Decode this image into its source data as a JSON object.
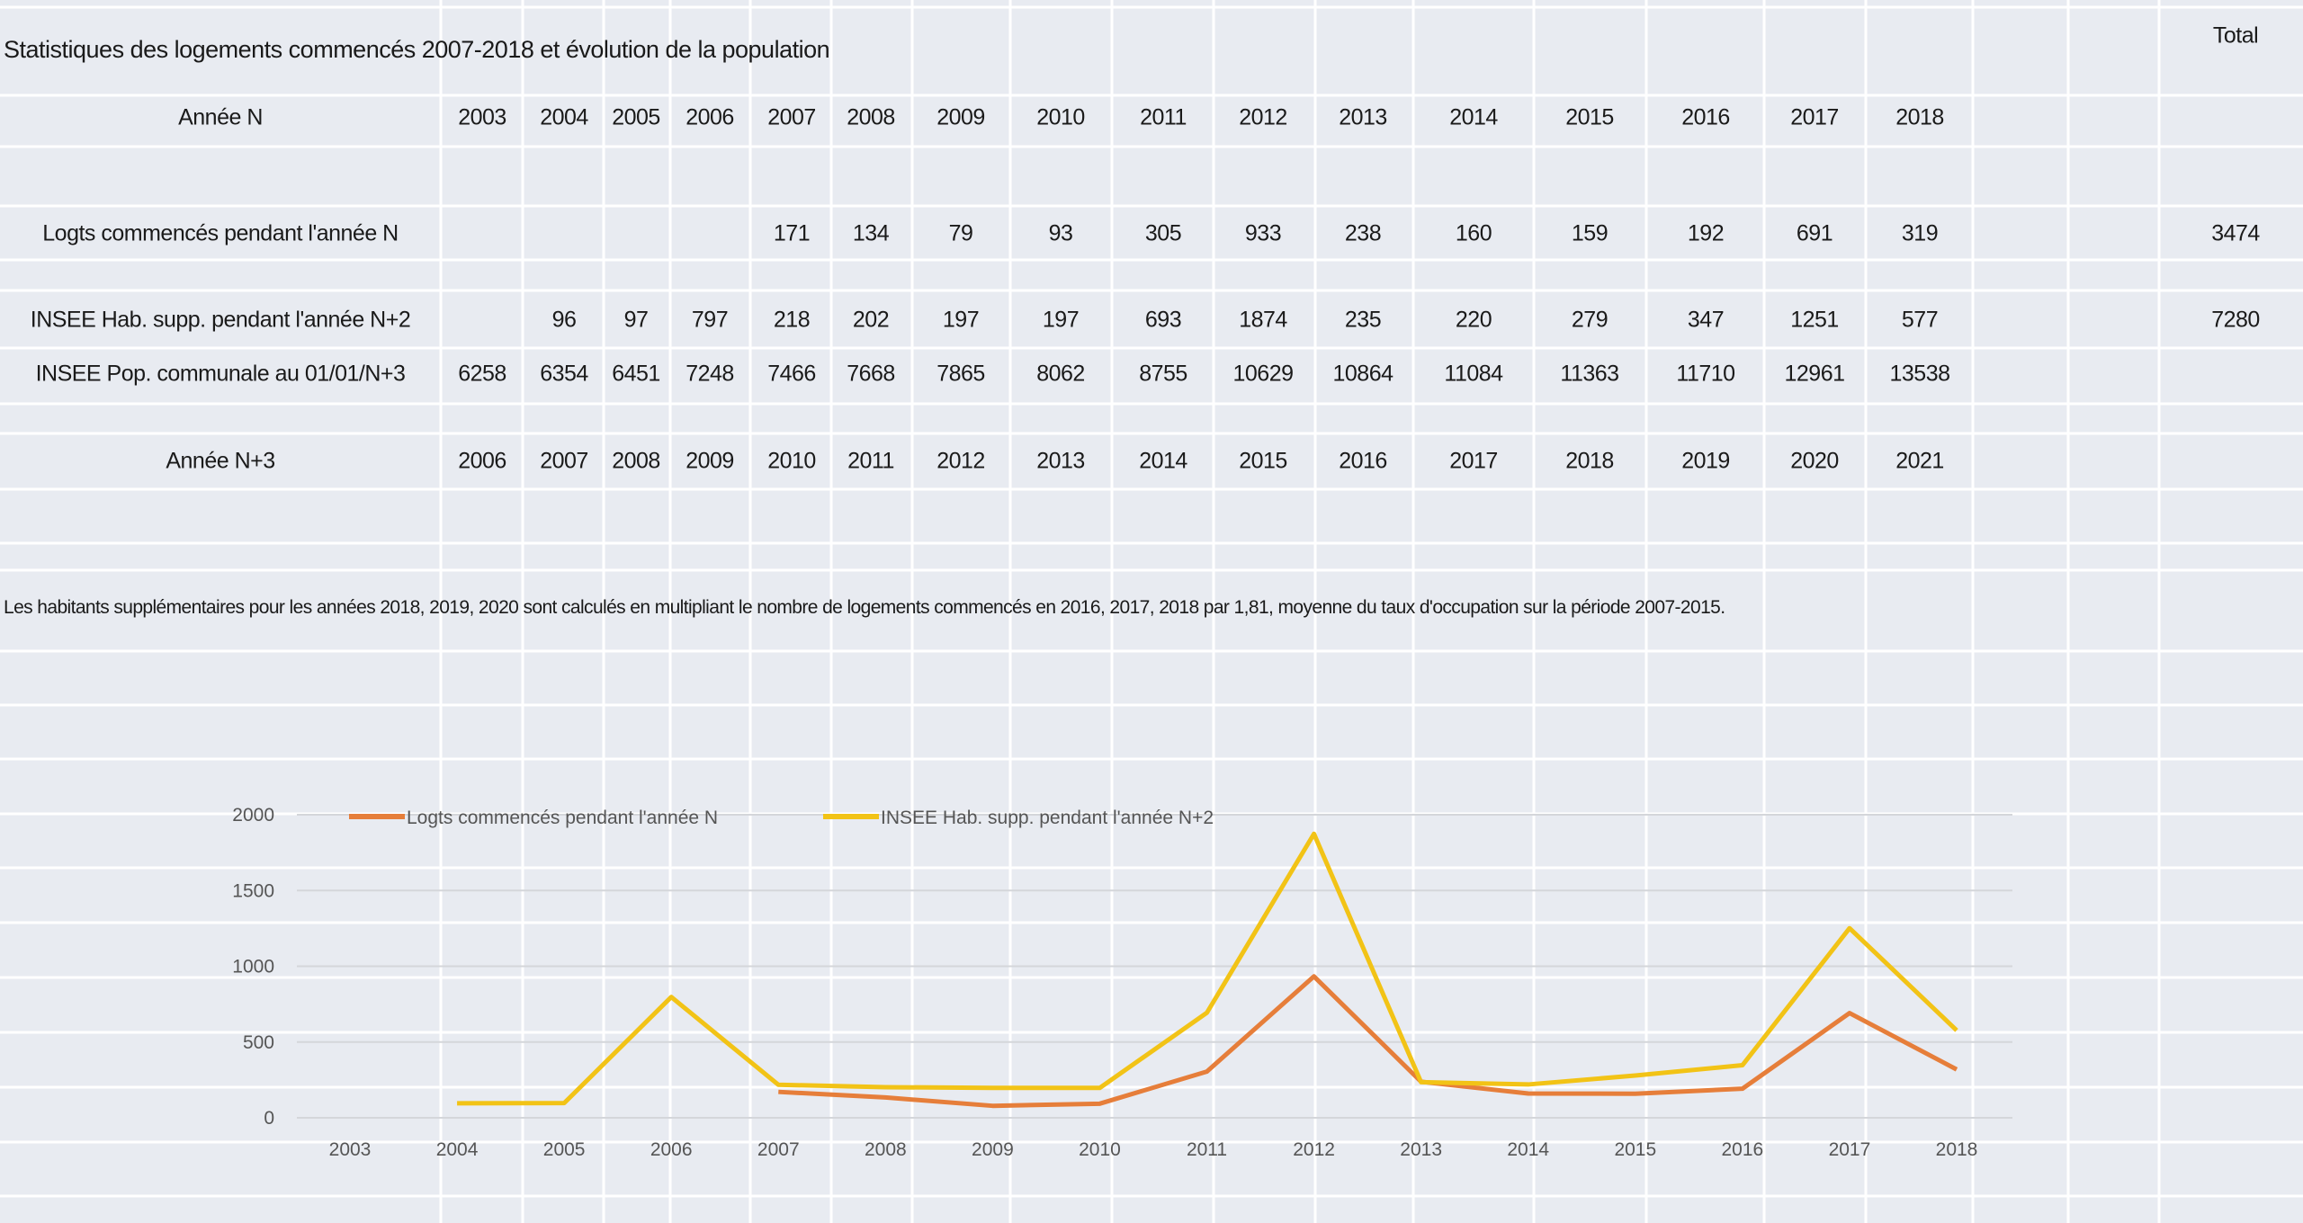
{
  "title": "Statistiques des logements commencés 2007-2018 et évolution de la population",
  "total_header": "Total",
  "table": {
    "rows": [
      {
        "label": "Année N",
        "values": [
          "2003",
          "2004",
          "2005",
          "2006",
          "2007",
          "2008",
          "2009",
          "2010",
          "2011",
          "2012",
          "2013",
          "2014",
          "2015",
          "2016",
          "2017",
          "2018"
        ],
        "total": ""
      },
      {
        "label": "Logts commencés pendant l'année N",
        "values": [
          "",
          "",
          "",
          "",
          "171",
          "134",
          "79",
          "93",
          "305",
          "933",
          "238",
          "160",
          "159",
          "192",
          "691",
          "319"
        ],
        "total": "3474"
      },
      {
        "label": "INSEE Hab. supp. pendant l'année N+2",
        "values": [
          "",
          "96",
          "97",
          "797",
          "218",
          "202",
          "197",
          "197",
          "693",
          "1874",
          "235",
          "220",
          "279",
          "347",
          "1251",
          "577"
        ],
        "total": "7280"
      },
      {
        "label": "INSEE Pop. communale au 01/01/N+3",
        "values": [
          "6258",
          "6354",
          "6451",
          "7248",
          "7466",
          "7668",
          "7865",
          "8062",
          "8755",
          "10629",
          "10864",
          "11084",
          "11363",
          "11710",
          "12961",
          "13538"
        ],
        "total": ""
      },
      {
        "label": "Année N+3",
        "values": [
          "2006",
          "2007",
          "2008",
          "2009",
          "2010",
          "2011",
          "2012",
          "2013",
          "2014",
          "2015",
          "2016",
          "2017",
          "2018",
          "2019",
          "2020",
          "2021"
        ],
        "total": ""
      }
    ]
  },
  "note": "Les habitants supplémentaires pour les années 2018, 2019, 2020 sont calculés en multipliant le nombre de logements commencés en 2016,  2017, 2018 par 1,81, moyenne du taux d'occupation sur la période 2007-2015.",
  "chart_data": {
    "type": "line",
    "title": "",
    "xlabel": "",
    "ylabel": "",
    "categories": [
      "2003",
      "2004",
      "2005",
      "2006",
      "2007",
      "2008",
      "2009",
      "2010",
      "2011",
      "2012",
      "2013",
      "2014",
      "2015",
      "2016",
      "2017",
      "2018"
    ],
    "ylim": [
      0,
      2000
    ],
    "yticks": [
      "0",
      "500",
      "1000",
      "1500",
      "2000"
    ],
    "grid": true,
    "legend": "top",
    "series": [
      {
        "name": "Logts commencés pendant l'année N",
        "color": "#e67e3a",
        "values": [
          null,
          null,
          null,
          null,
          171,
          134,
          79,
          93,
          305,
          933,
          238,
          160,
          159,
          192,
          691,
          319
        ]
      },
      {
        "name": "INSEE Hab. supp. pendant l'année N+2",
        "color": "#f2c316",
        "values": [
          null,
          96,
          97,
          797,
          218,
          202,
          197,
          197,
          693,
          1874,
          235,
          220,
          279,
          347,
          1251,
          577
        ]
      }
    ]
  }
}
